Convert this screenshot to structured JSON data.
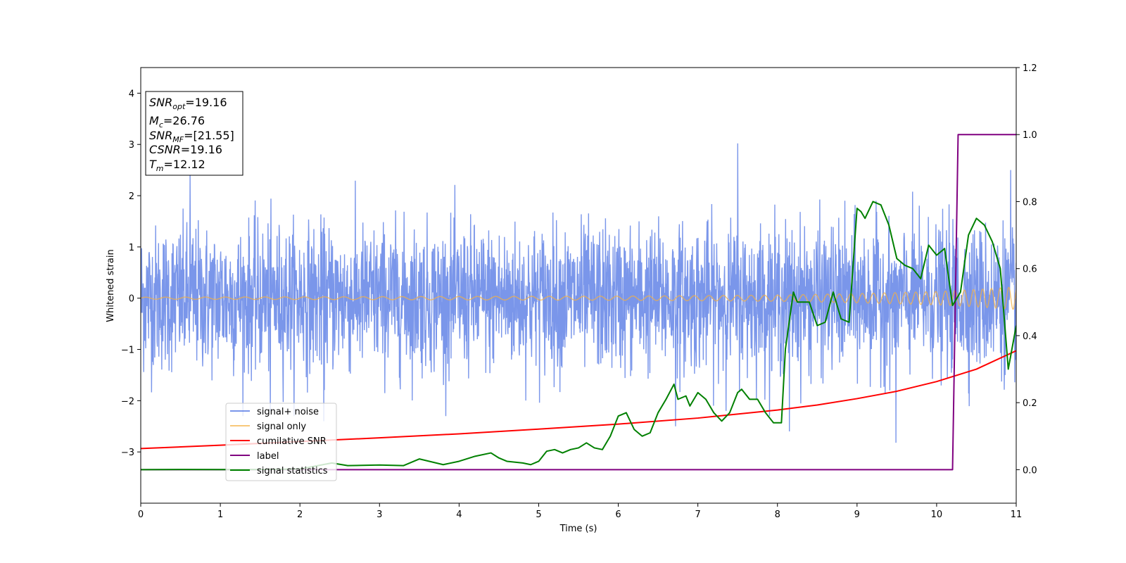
{
  "chart_data": {
    "type": "line",
    "xlabel": "Time (s)",
    "ylabel": "Whitened strain",
    "xlim": [
      0,
      11
    ],
    "ylim_left": [
      -4,
      4.5
    ],
    "ylim_right": [
      -0.1,
      1.2
    ],
    "x_ticks": [
      "0",
      "1",
      "2",
      "3",
      "4",
      "5",
      "6",
      "7",
      "8",
      "9",
      "10",
      "11"
    ],
    "y_left_ticks": [
      "−3",
      "−2",
      "−1",
      "0",
      "1",
      "2",
      "3",
      "4"
    ],
    "y_right_ticks": [
      "0.0",
      "0.2",
      "0.4",
      "0.6",
      "0.8",
      "1.0",
      "1.2"
    ],
    "grid": false,
    "legend_position": "lower-left",
    "annotations": {
      "snr_opt": {
        "base": "SNR",
        "sub": "opt",
        "value": "=19.16"
      },
      "mc": {
        "base": "M",
        "sub": "c",
        "value": "=26.76"
      },
      "snr_mf": {
        "base": "SNR",
        "sub": "MF",
        "value": "=[21.55]"
      },
      "csnr": {
        "base": "CSNR",
        "sub": "",
        "value": "=19.16"
      },
      "tm": {
        "base": "T",
        "sub": "m",
        "value": "=12.12"
      }
    },
    "series": [
      {
        "name": "signal+ noise",
        "color": "#4169e1",
        "axis": "left",
        "approx": "noise, std≈0.7, spikes to ±2.5 (max 3.0 near t=7.5)",
        "std": 0.7,
        "spikes": [
          [
            0.62,
            2.45
          ],
          [
            7.5,
            3.02
          ],
          [
            9.49,
            -2.82
          ],
          [
            8.15,
            -2.6
          ],
          [
            10.93,
            2.5
          ],
          [
            1.63,
            -2.2
          ],
          [
            2.3,
            -2.4
          ],
          [
            6.72,
            -2.5
          ]
        ]
      },
      {
        "name": "signal only",
        "color": "#f5b041",
        "axis": "left",
        "amplitude_x": [
          0,
          3,
          6,
          8,
          9,
          10,
          10.5,
          11
        ],
        "amplitude": [
          0.02,
          0.03,
          0.04,
          0.06,
          0.09,
          0.13,
          0.17,
          0.22
        ]
      },
      {
        "name": "cumilative SNR",
        "color": "#ff0000",
        "axis": "right",
        "x": [
          0,
          1,
          2,
          3,
          4,
          5,
          6,
          7,
          8,
          8.5,
          9,
          9.5,
          10,
          10.5,
          11
        ],
        "y": [
          0.063,
          0.073,
          0.084,
          0.095,
          0.107,
          0.121,
          0.136,
          0.154,
          0.178,
          0.193,
          0.212,
          0.234,
          0.263,
          0.3,
          0.355
        ]
      },
      {
        "name": "label",
        "color": "#800080",
        "axis": "right",
        "x": [
          0,
          10.2,
          10.27,
          11
        ],
        "y": [
          0,
          0,
          1.0,
          1.0
        ]
      },
      {
        "name": "signal statistics",
        "color": "#008000",
        "axis": "right",
        "x": [
          0,
          0.5,
          1,
          1.5,
          2,
          2.4,
          2.6,
          3,
          3.3,
          3.5,
          3.8,
          4,
          4.2,
          4.4,
          4.5,
          4.6,
          4.8,
          4.9,
          5,
          5.1,
          5.2,
          5.3,
          5.4,
          5.5,
          5.6,
          5.7,
          5.8,
          5.9,
          6,
          6.1,
          6.2,
          6.3,
          6.4,
          6.5,
          6.6,
          6.7,
          6.75,
          6.85,
          6.9,
          7,
          7.1,
          7.2,
          7.3,
          7.4,
          7.5,
          7.55,
          7.65,
          7.75,
          7.85,
          7.95,
          8.05,
          8.1,
          8.2,
          8.25,
          8.3,
          8.4,
          8.5,
          8.6,
          8.7,
          8.8,
          8.9,
          9,
          9.05,
          9.1,
          9.2,
          9.3,
          9.4,
          9.5,
          9.6,
          9.7,
          9.8,
          9.9,
          10,
          10.1,
          10.2,
          10.3,
          10.4,
          10.5,
          10.6,
          10.7,
          10.8,
          10.9,
          11
        ],
        "y": [
          0,
          0.0005,
          0.0003,
          0.0006,
          0.002,
          0.02,
          0.012,
          0.014,
          0.012,
          0.032,
          0.015,
          0.025,
          0.04,
          0.05,
          0.035,
          0.025,
          0.02,
          0.015,
          0.025,
          0.055,
          0.06,
          0.05,
          0.06,
          0.065,
          0.08,
          0.065,
          0.06,
          0.1,
          0.16,
          0.17,
          0.12,
          0.1,
          0.11,
          0.17,
          0.21,
          0.255,
          0.21,
          0.22,
          0.19,
          0.23,
          0.21,
          0.17,
          0.145,
          0.17,
          0.23,
          0.24,
          0.21,
          0.21,
          0.17,
          0.14,
          0.14,
          0.36,
          0.53,
          0.5,
          0.5,
          0.5,
          0.43,
          0.44,
          0.53,
          0.45,
          0.44,
          0.78,
          0.77,
          0.75,
          0.8,
          0.79,
          0.73,
          0.63,
          0.61,
          0.6,
          0.57,
          0.67,
          0.64,
          0.66,
          0.49,
          0.53,
          0.7,
          0.75,
          0.73,
          0.68,
          0.6,
          0.3,
          0.43
        ]
      }
    ]
  }
}
